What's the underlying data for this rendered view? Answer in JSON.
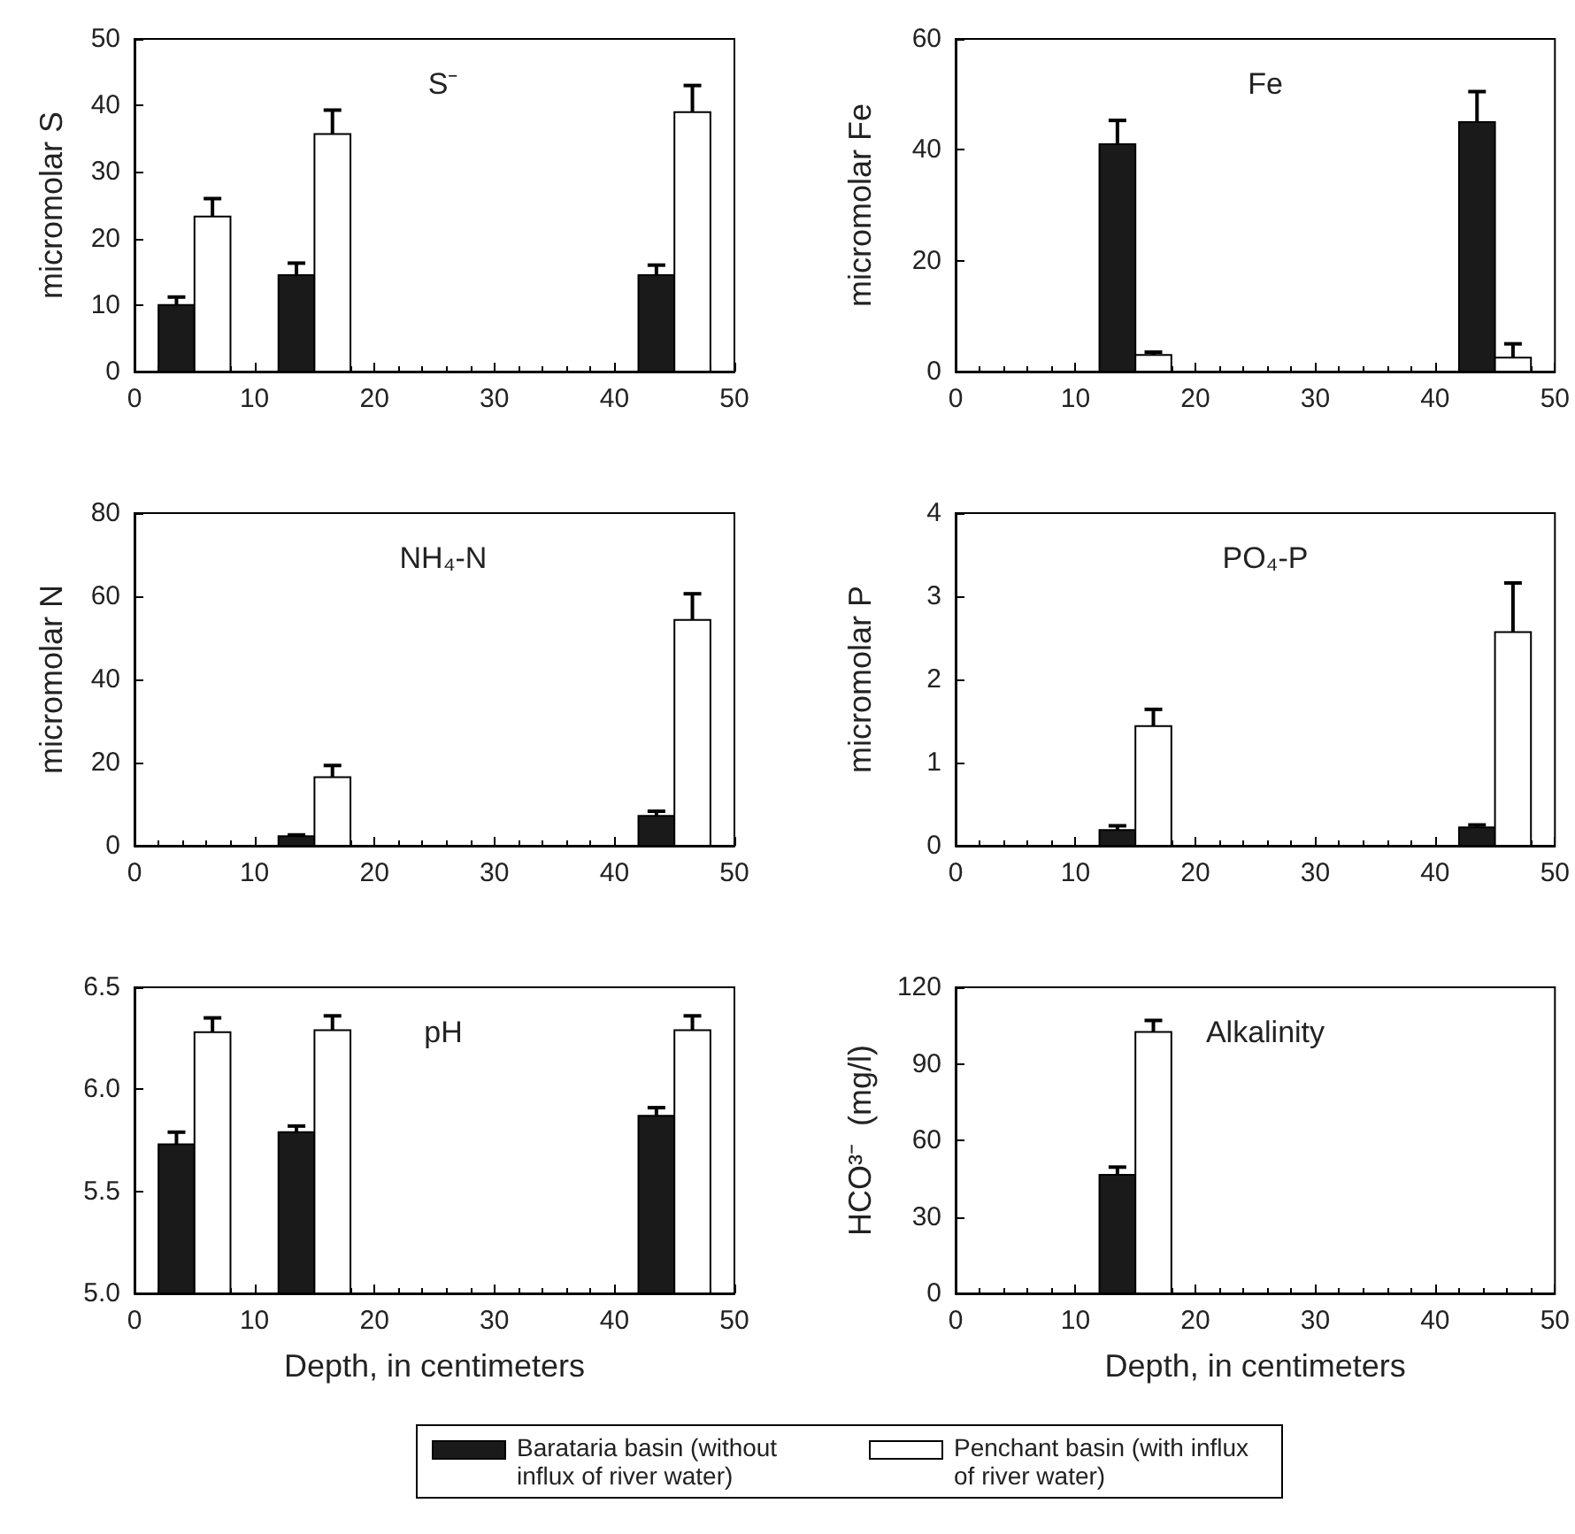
{
  "chart_data": [
    {
      "type": "bar",
      "title": "S⁻",
      "ylabel": "micromolar S",
      "xlim": [
        0,
        50
      ],
      "xticks": [
        0,
        10,
        20,
        30,
        40,
        50
      ],
      "ylim": [
        0,
        50
      ],
      "yticks": [
        0,
        10,
        20,
        30,
        40,
        50
      ],
      "legend": "bottom",
      "series": [
        {
          "name": "Barataria basin (without influx of river water)",
          "color": "#1a1a1a",
          "x": [
            3.5,
            13.5,
            43.5
          ],
          "values": [
            10,
            14.5,
            14.5
          ],
          "errors": [
            [
              10,
              11.2
            ],
            [
              14.5,
              16.3
            ],
            [
              14.5,
              16
            ]
          ]
        },
        {
          "name": "Penchant basin (with influx of river water)",
          "color": "#ffffff",
          "x": [
            6.5,
            16.5,
            46.5
          ],
          "values": [
            23.3,
            35.7,
            39
          ],
          "errors": [
            [
              23.3,
              26
            ],
            [
              35.7,
              39.3
            ],
            [
              39,
              43
            ]
          ]
        }
      ]
    },
    {
      "type": "bar",
      "title": "Fe",
      "ylabel": "micromolar Fe",
      "xlim": [
        0,
        50
      ],
      "xticks": [
        0,
        10,
        20,
        30,
        40,
        50
      ],
      "ylim": [
        0,
        60
      ],
      "yticks": [
        0,
        20,
        40,
        60
      ],
      "legend": "bottom",
      "series": [
        {
          "name": "Barataria basin (without influx of river water)",
          "color": "#1a1a1a",
          "x": [
            13.5,
            43.5
          ],
          "values": [
            41,
            45
          ],
          "errors": [
            [
              41,
              45.3
            ],
            [
              45,
              50.5
            ]
          ]
        },
        {
          "name": "Penchant basin (with influx of river water)",
          "color": "#ffffff",
          "x": [
            16.5,
            46.5
          ],
          "values": [
            3,
            2.5
          ],
          "errors": [
            [
              3,
              3.5
            ],
            [
              2.5,
              5
            ]
          ]
        }
      ]
    },
    {
      "type": "bar",
      "title": "NH₄-N",
      "ylabel": "micromolar N",
      "xlim": [
        0,
        50
      ],
      "xticks": [
        0,
        10,
        20,
        30,
        40,
        50
      ],
      "ylim": [
        0,
        80
      ],
      "yticks": [
        0,
        20,
        40,
        60,
        80
      ],
      "legend": "bottom",
      "series": [
        {
          "name": "Barataria basin (without influx of river water)",
          "color": "#1a1a1a",
          "x": [
            13.5,
            43.5
          ],
          "values": [
            2.3,
            7.2
          ],
          "errors": [
            [
              2.3,
              2.6
            ],
            [
              7.2,
              8.3
            ]
          ]
        },
        {
          "name": "Penchant basin (with influx of river water)",
          "color": "#ffffff",
          "x": [
            16.5,
            46.5
          ],
          "values": [
            16.5,
            54.3
          ],
          "errors": [
            [
              16.5,
              19.3
            ],
            [
              54.3,
              60.6
            ]
          ]
        }
      ]
    },
    {
      "type": "bar",
      "title": "PO₄-P",
      "ylabel": "micromolar P",
      "xlim": [
        0,
        50
      ],
      "xticks": [
        0,
        10,
        20,
        30,
        40,
        50
      ],
      "ylim": [
        0,
        4
      ],
      "yticks": [
        0,
        1,
        2,
        3,
        4
      ],
      "legend": "bottom",
      "series": [
        {
          "name": "Barataria basin (without influx of river water)",
          "color": "#1a1a1a",
          "x": [
            13.5,
            43.5
          ],
          "values": [
            0.19,
            0.22
          ],
          "errors": [
            [
              0.19,
              0.24
            ],
            [
              0.22,
              0.25
            ]
          ]
        },
        {
          "name": "Penchant basin (with influx of river water)",
          "color": "#ffffff",
          "x": [
            16.5,
            46.5
          ],
          "values": [
            1.44,
            2.57
          ],
          "errors": [
            [
              1.44,
              1.64
            ],
            [
              2.57,
              3.16
            ]
          ]
        }
      ]
    },
    {
      "type": "bar",
      "title": "pH",
      "xlabel": "Depth, in centimeters",
      "xlim": [
        0,
        50
      ],
      "xticks": [
        0,
        10,
        20,
        30,
        40,
        50
      ],
      "ylim": [
        5,
        6.5
      ],
      "yticks": [
        {
          "value": 5,
          "label": "5.0"
        },
        {
          "value": 5.5,
          "label": "5.5"
        },
        {
          "value": 6,
          "label": "6.0"
        },
        {
          "value": 6.5,
          "label": "6.5"
        }
      ],
      "legend": "bottom",
      "series": [
        {
          "name": "Barataria basin (without influx of river water)",
          "color": "#1a1a1a",
          "x": [
            3.5,
            13.5,
            43.5
          ],
          "values": [
            5.73,
            5.79,
            5.87
          ],
          "errors": [
            [
              5.73,
              5.79
            ],
            [
              5.79,
              5.82
            ],
            [
              5.87,
              5.91
            ]
          ]
        },
        {
          "name": "Penchant basin (with influx of river water)",
          "color": "#ffffff",
          "x": [
            6.5,
            16.5,
            46.5
          ],
          "values": [
            6.28,
            6.29,
            6.29
          ],
          "errors": [
            [
              6.28,
              6.35
            ],
            [
              6.29,
              6.36
            ],
            [
              6.29,
              6.36
            ]
          ]
        }
      ]
    },
    {
      "type": "bar",
      "title": "Alkalinity",
      "xlabel": "Depth, in centimeters",
      "ylabel": "HCO³⁻  (mg/l)",
      "xlim": [
        0,
        50
      ],
      "xticks": [
        0,
        10,
        20,
        30,
        40,
        50
      ],
      "ylim": [
        0,
        120
      ],
      "yticks": [
        0,
        30,
        60,
        90,
        120
      ],
      "legend": "bottom",
      "series": [
        {
          "name": "Barataria basin (without influx of river water)",
          "color": "#1a1a1a",
          "x": [
            13.5
          ],
          "values": [
            46.5
          ],
          "errors": [
            [
              46.5,
              49.5
            ]
          ]
        },
        {
          "name": "Penchant basin (with influx of river water)",
          "color": "#ffffff",
          "x": [
            16.5
          ],
          "values": [
            102.5
          ],
          "errors": [
            [
              102.5,
              107
            ]
          ]
        }
      ]
    }
  ]
}
